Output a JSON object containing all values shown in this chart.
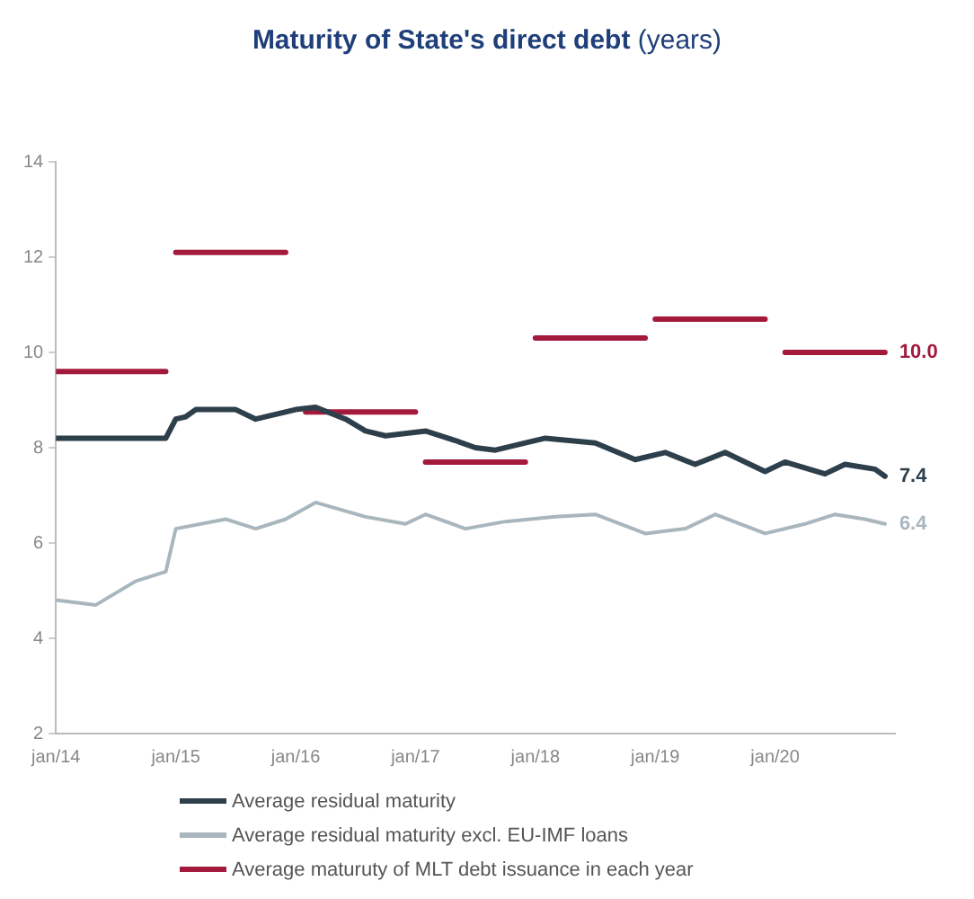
{
  "chart_data": {
    "type": "line",
    "title": "Maturity of State's direct debt",
    "subtitle": "(years)",
    "xlim": [
      "2014-01",
      "2021-01"
    ],
    "xticks": [
      {
        "value": "2014-01",
        "label": "jan/14"
      },
      {
        "value": "2015-01",
        "label": "jan/15"
      },
      {
        "value": "2016-01",
        "label": "jan/16"
      },
      {
        "value": "2017-01",
        "label": "jan/17"
      },
      {
        "value": "2018-01",
        "label": "jan/18"
      },
      {
        "value": "2019-01",
        "label": "jan/19"
      },
      {
        "value": "2020-01",
        "label": "jan/20"
      }
    ],
    "ylim": [
      2,
      14
    ],
    "yticks": [
      2,
      4,
      6,
      8,
      10,
      12,
      14
    ],
    "grid": false,
    "legend": "bottom",
    "marker": "none",
    "line_style": "solid",
    "series": [
      {
        "name": "Average residual maturity",
        "color": "#2e3f4c",
        "x": [
          "2014-01",
          "2014-12",
          "2015-01",
          "2015-02",
          "2015-03",
          "2015-07",
          "2015-09",
          "2015-11",
          "2016-01",
          "2016-03",
          "2016-06",
          "2016-08",
          "2016-10",
          "2017-02",
          "2017-05",
          "2017-07",
          "2017-09",
          "2017-12",
          "2018-02",
          "2018-07",
          "2018-11",
          "2019-02",
          "2019-05",
          "2019-08",
          "2019-12",
          "2020-02",
          "2020-06",
          "2020-08",
          "2020-11",
          "2020-12"
        ],
        "values": [
          8.2,
          8.2,
          8.6,
          8.65,
          8.8,
          8.8,
          8.6,
          8.7,
          8.8,
          8.85,
          8.6,
          8.35,
          8.25,
          8.35,
          8.15,
          8.0,
          7.95,
          8.1,
          8.2,
          8.1,
          7.75,
          7.9,
          7.65,
          7.9,
          7.5,
          7.7,
          7.45,
          7.65,
          7.55,
          7.4
        ],
        "value_labels": [
          null,
          null,
          null,
          null,
          null,
          null,
          null,
          null,
          null,
          null,
          null,
          null,
          null,
          null,
          null,
          null,
          null,
          null,
          null,
          null,
          null,
          null,
          null,
          null,
          null,
          null,
          null,
          null,
          null,
          "7.4"
        ]
      },
      {
        "name": "Average residual maturity excl. EU-IMF loans",
        "color": "#a9b6bd",
        "x": [
          "2014-01",
          "2014-05",
          "2014-09",
          "2014-12",
          "2015-01",
          "2015-06",
          "2015-09",
          "2015-12",
          "2016-03",
          "2016-08",
          "2016-12",
          "2017-02",
          "2017-06",
          "2017-10",
          "2018-03",
          "2018-07",
          "2018-12",
          "2019-04",
          "2019-07",
          "2019-12",
          "2020-04",
          "2020-07",
          "2020-10",
          "2020-12"
        ],
        "values": [
          4.8,
          4.7,
          5.2,
          5.4,
          6.3,
          6.5,
          6.3,
          6.5,
          6.85,
          6.55,
          6.4,
          6.6,
          6.3,
          6.45,
          6.55,
          6.6,
          6.2,
          6.3,
          6.6,
          6.2,
          6.4,
          6.6,
          6.5,
          6.4
        ],
        "value_labels": [
          null,
          null,
          null,
          null,
          null,
          null,
          null,
          null,
          null,
          null,
          null,
          null,
          null,
          null,
          null,
          null,
          null,
          null,
          null,
          null,
          null,
          null,
          null,
          "6.4"
        ]
      },
      {
        "name": "Average maturuty of MLT debt issuance in each year",
        "color": "#a31a3d",
        "x": [
          "2014-01",
          "2014-12",
          "2014-12-31",
          "2015-01",
          "2015-12",
          "2015-12-31",
          "2016-02",
          "2017-01",
          "2017-01-15",
          "2017-02",
          "2017-12",
          "2017-12-31",
          "2018-01",
          "2018-12",
          "2018-12-31",
          "2019-01",
          "2019-12",
          "2019-12-31",
          "2020-02",
          "2020-12"
        ],
        "values": [
          9.6,
          9.6,
          null,
          12.1,
          12.1,
          null,
          8.75,
          8.75,
          null,
          7.7,
          7.7,
          null,
          10.3,
          10.3,
          null,
          10.7,
          10.7,
          null,
          10.0,
          10.0
        ],
        "value_labels": [
          null,
          null,
          null,
          null,
          null,
          null,
          null,
          null,
          null,
          null,
          null,
          null,
          null,
          null,
          null,
          null,
          null,
          null,
          null,
          "10.0"
        ]
      }
    ]
  }
}
